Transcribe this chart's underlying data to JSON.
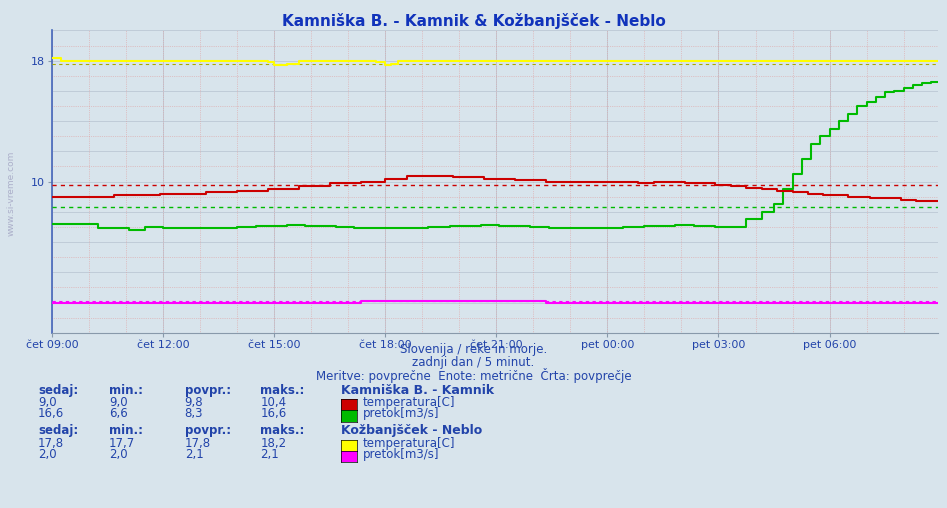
{
  "title": "Kamniška B. - Kamnik & Kožbanjšček - Neblo",
  "bg_color": "#d8e4ec",
  "plot_bg_color": "#d8e4ec",
  "xlabel": "",
  "ylabel": "",
  "ylim": [
    0,
    20
  ],
  "xlim": [
    0,
    287
  ],
  "xtick_labels": [
    "čet 09:00",
    "čet 12:00",
    "čet 15:00",
    "čet 18:00",
    "čet 21:00",
    "pet 00:00",
    "pet 03:00",
    "pet 06:00"
  ],
  "xtick_positions": [
    0,
    36,
    72,
    108,
    144,
    180,
    216,
    252
  ],
  "colors": {
    "kamnik_temp": "#cc0000",
    "kamnik_pretok": "#00bb00",
    "kozban_temp": "#ffff00",
    "kozban_pretok": "#ff00ff"
  },
  "avg_kamnik_temp": 9.8,
  "avg_kamnik_pretok": 8.3,
  "avg_kozban_temp": 17.8,
  "avg_kozban_pretok": 2.1,
  "subtitle1": "Slovenija / reke in morje.",
  "subtitle2": "zadnji dan / 5 minut.",
  "subtitle3": "Meritve: povprečne  Enote: metrične  Črta: povprečje",
  "legend_title1": "Kamniška B. - Kamnik",
  "legend_title2": "Kožbanjšček - Neblo",
  "legend_items1": [
    "temperatura[C]",
    "pretok[m3/s]"
  ],
  "legend_items2": [
    "temperatura[C]",
    "pretok[m3/s]"
  ],
  "stats1_sedaj": [
    "9,0",
    "16,6"
  ],
  "stats1_min": [
    "9,0",
    "6,6"
  ],
  "stats1_povpr": [
    "9,8",
    "8,3"
  ],
  "stats1_maks": [
    "10,4",
    "16,6"
  ],
  "stats2_sedaj": [
    "17,8",
    "2,0"
  ],
  "stats2_min": [
    "17,7",
    "2,0"
  ],
  "stats2_povpr": [
    "17,8",
    "2,1"
  ],
  "stats2_maks": [
    "18,2",
    "2,1"
  ],
  "grid_major_color": "#c0ccd8",
  "grid_minor_color": "#e0a0a0",
  "axis_color": "#4466aa",
  "text_color": "#2244aa"
}
